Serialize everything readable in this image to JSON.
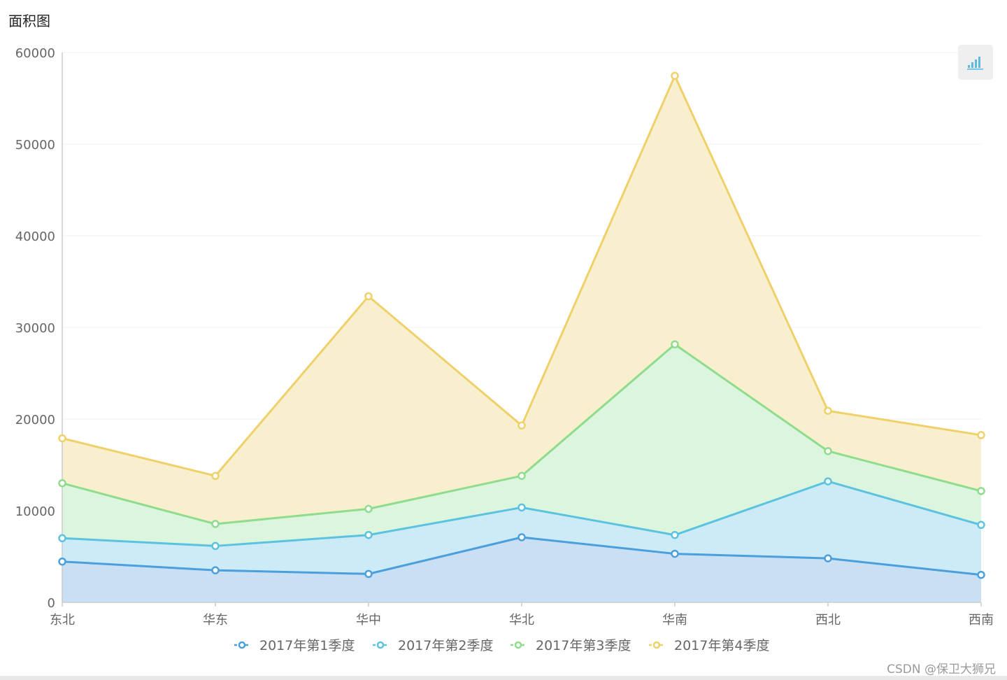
{
  "title": "面积图",
  "watermark": "CSDN @保卫大狮兄",
  "toolbox": {
    "icon": "bar-chart-icon"
  },
  "chart_data": {
    "type": "area",
    "title": "面积图",
    "stacked": true,
    "categories": [
      "东北",
      "华东",
      "华中",
      "华北",
      "华南",
      "西北",
      "西南"
    ],
    "ylim": [
      0,
      60000
    ],
    "yticks": [
      0,
      10000,
      20000,
      30000,
      40000,
      50000,
      60000
    ],
    "grid": true,
    "legend_position": "bottom",
    "series": [
      {
        "name": "2017年第1季度",
        "color": "#4a9fdc",
        "fill": "#c9dff4",
        "values": [
          4450,
          3500,
          3100,
          7100,
          5300,
          4800,
          3000
        ]
      },
      {
        "name": "2017年第2季度",
        "color": "#5bc2e0",
        "fill": "#cdebf6",
        "values": [
          2550,
          2650,
          4250,
          3250,
          2050,
          8400,
          5450
        ]
      },
      {
        "name": "2017年第3季度",
        "color": "#8edc8c",
        "fill": "#dbf5de",
        "values": [
          6000,
          2400,
          2850,
          3450,
          20800,
          3300,
          3700
        ]
      },
      {
        "name": "2017年第4季度",
        "color": "#efd06a",
        "fill": "#f8efcf",
        "values": [
          4900,
          5250,
          23200,
          5500,
          29300,
          4400,
          6100
        ]
      }
    ]
  }
}
